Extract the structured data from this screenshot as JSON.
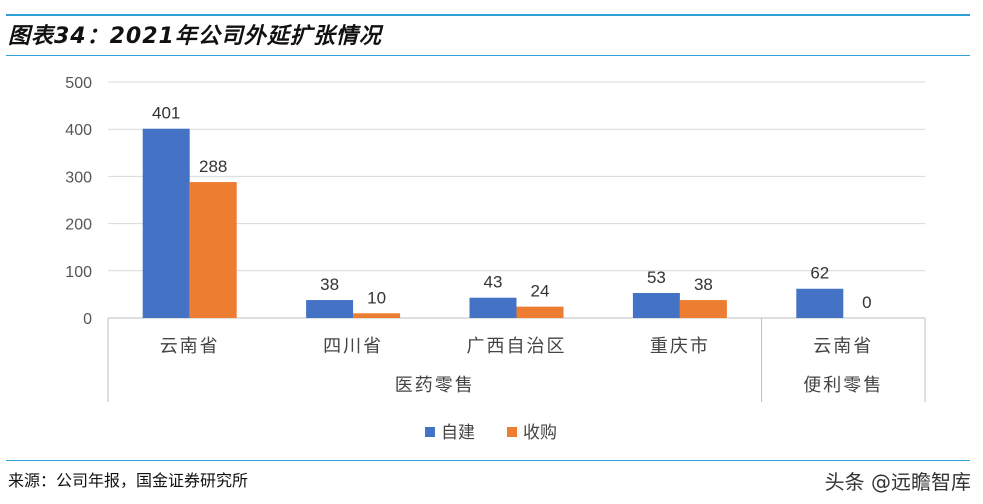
{
  "header": {
    "title": "图表34：2021年公司外延扩张情况"
  },
  "footer": {
    "source": "来源：公司年报，国金证券研究所",
    "watermark": "头条 @远瞻智库"
  },
  "colors": {
    "series_a": "#4472c4",
    "series_b": "#ed7d31",
    "rule": "#2f9fd8",
    "grid": "#d9d9d9"
  },
  "chart_data": {
    "type": "bar",
    "title": "",
    "xlabel": "",
    "ylabel": "",
    "ylim": [
      0,
      500
    ],
    "yticks": [
      0,
      100,
      200,
      300,
      400,
      500
    ],
    "categories": [
      "云南省",
      "四川省",
      "广西自治区",
      "重庆市",
      "云南省"
    ],
    "groups": [
      {
        "label": "医药零售",
        "span": [
          0,
          3
        ]
      },
      {
        "label": "便利零售",
        "span": [
          4,
          4
        ]
      }
    ],
    "series": [
      {
        "name": "自建",
        "values": [
          401,
          38,
          43,
          53,
          62
        ]
      },
      {
        "name": "收购",
        "values": [
          288,
          10,
          24,
          38,
          0
        ]
      }
    ],
    "grid": true,
    "legend": "bottom-center"
  }
}
